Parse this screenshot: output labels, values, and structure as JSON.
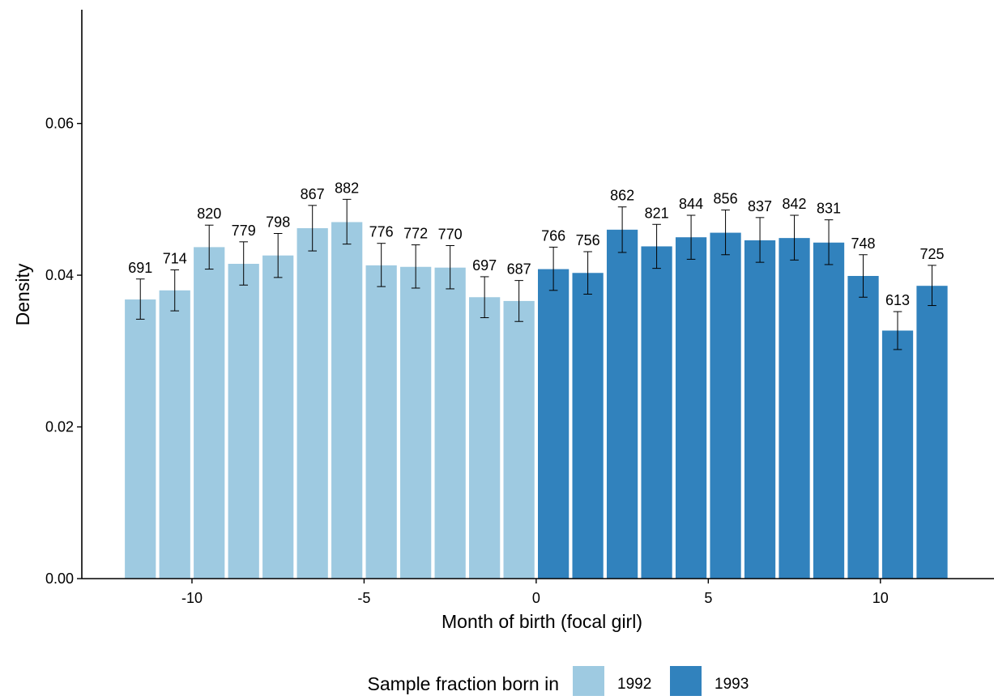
{
  "chart_data": {
    "type": "bar",
    "title": "",
    "xlabel": "Month of birth (focal girl)",
    "ylabel": "Density",
    "xlim": [
      -13.2,
      13.3
    ],
    "ylim": [
      0,
      0.075
    ],
    "xticks": [
      -10,
      -5,
      0,
      5,
      10
    ],
    "yticks": [
      0.0,
      0.02,
      0.04,
      0.06
    ],
    "ytick_labels": [
      "0.00",
      "0.02",
      "0.04",
      "0.06"
    ],
    "grid": false,
    "legend": {
      "title": "Sample fraction born in",
      "position": "bottom",
      "entries": [
        "1992",
        "1993"
      ]
    },
    "colors": {
      "1992": "#9ecae1",
      "1993": "#3182bd",
      "errorbar": "#000000",
      "axis": "#000000"
    },
    "series": [
      {
        "name": "1992",
        "x": [
          -11.5,
          -10.5,
          -9.5,
          -8.5,
          -7.5,
          -6.5,
          -5.5,
          -4.5,
          -3.5,
          -2.5,
          -1.5,
          -0.5
        ],
        "values": [
          0.0368,
          0.038,
          0.0437,
          0.0415,
          0.0426,
          0.0462,
          0.047,
          0.0413,
          0.0411,
          0.041,
          0.0371,
          0.0366
        ],
        "err_low": [
          0.0342,
          0.0353,
          0.0408,
          0.0387,
          0.0397,
          0.0432,
          0.0441,
          0.0385,
          0.0383,
          0.0382,
          0.0344,
          0.0339
        ],
        "err_high": [
          0.0395,
          0.0407,
          0.0466,
          0.0444,
          0.0455,
          0.0492,
          0.05,
          0.0442,
          0.044,
          0.0439,
          0.0398,
          0.0393
        ],
        "counts": [
          "691",
          "714",
          "820",
          "779",
          "798",
          "867",
          "882",
          "776",
          "772",
          "770",
          "697",
          "687"
        ]
      },
      {
        "name": "1993",
        "x": [
          0.5,
          1.5,
          2.5,
          3.5,
          4.5,
          5.5,
          6.5,
          7.5,
          8.5,
          9.5,
          10.5,
          11.5
        ],
        "values": [
          0.0408,
          0.0403,
          0.046,
          0.0438,
          0.045,
          0.0456,
          0.0446,
          0.0449,
          0.0443,
          0.0399,
          0.0327,
          0.0386
        ],
        "err_low": [
          0.038,
          0.0375,
          0.043,
          0.0409,
          0.0421,
          0.0427,
          0.0417,
          0.042,
          0.0414,
          0.0371,
          0.0302,
          0.036
        ],
        "err_high": [
          0.0437,
          0.0431,
          0.049,
          0.0467,
          0.0479,
          0.0486,
          0.0476,
          0.0479,
          0.0473,
          0.0427,
          0.0352,
          0.0413
        ],
        "counts": [
          "766",
          "756",
          "862",
          "821",
          "844",
          "856",
          "837",
          "842",
          "831",
          "748",
          "613",
          "725"
        ]
      }
    ]
  }
}
